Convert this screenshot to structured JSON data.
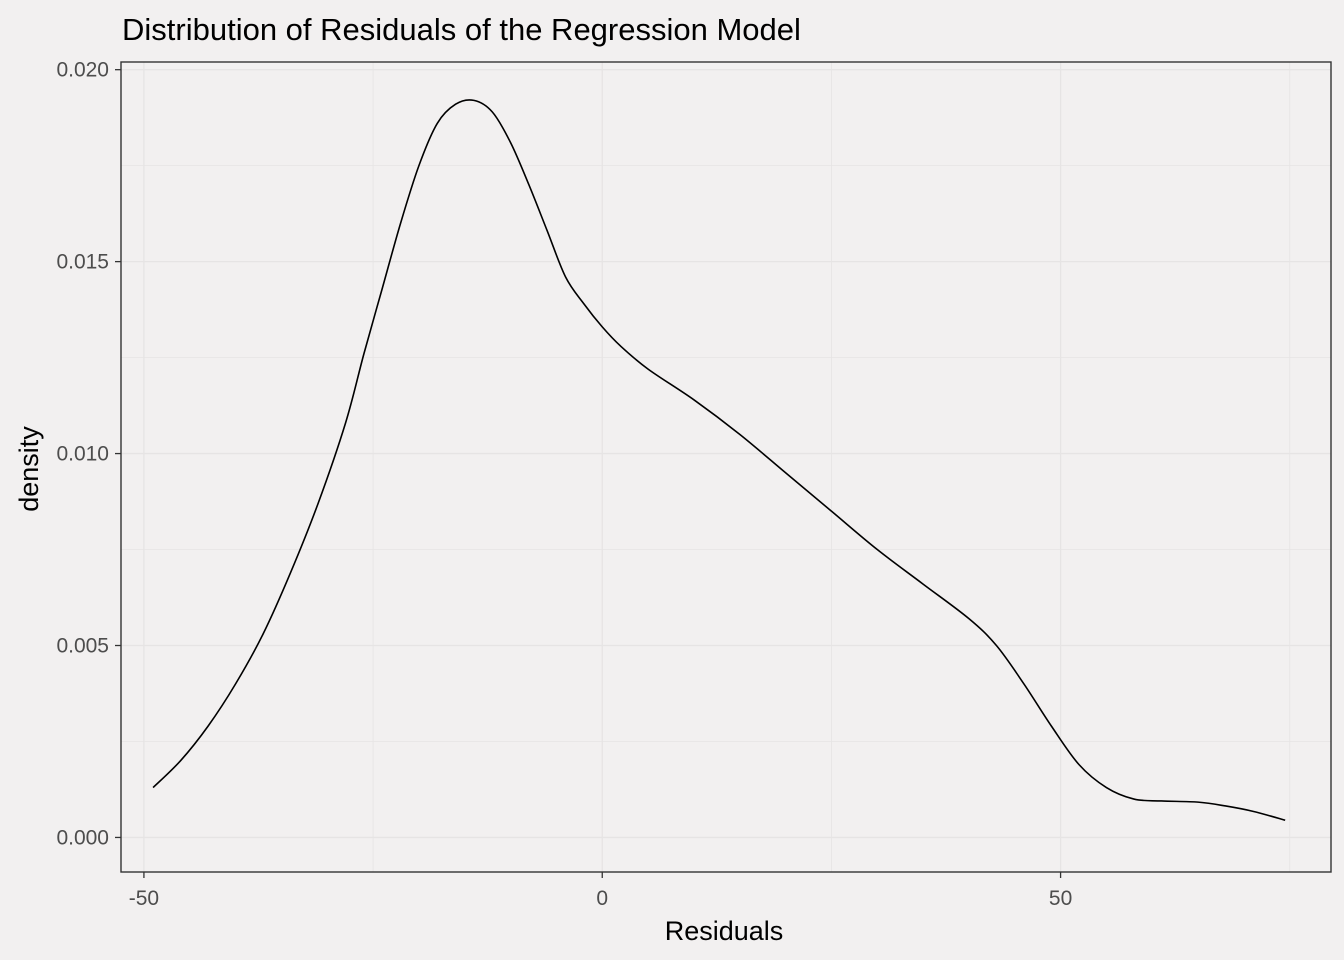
{
  "chart_data": {
    "type": "line",
    "title": "Distribution of Residuals of the Regression Model",
    "xlabel": "Residuals",
    "ylabel": "density",
    "xlim": [
      -52.5,
      79.5
    ],
    "ylim": [
      -0.0009,
      0.0202
    ],
    "x_ticks": [
      {
        "value": -50,
        "label": "-50"
      },
      {
        "value": 0,
        "label": "0"
      },
      {
        "value": 50,
        "label": "50"
      }
    ],
    "y_ticks": [
      {
        "value": 0.0,
        "label": "0.000"
      },
      {
        "value": 0.005,
        "label": "0.005"
      },
      {
        "value": 0.01,
        "label": "0.010"
      },
      {
        "value": 0.015,
        "label": "0.015"
      },
      {
        "value": 0.02,
        "label": "0.020"
      }
    ],
    "grid": true,
    "colors": {
      "background": "#f2f0f0",
      "grid": "#e6e4e4",
      "axis": "#333333",
      "line": "#000000",
      "tick_text": "#4d4d4d",
      "title_text": "#000000"
    },
    "series": [
      {
        "x": [
          -49,
          -46,
          -43,
          -40,
          -37,
          -34,
          -31,
          -28,
          -26,
          -24,
          -22,
          -20,
          -18,
          -16,
          -14,
          -12,
          -10,
          -8,
          -6,
          -4,
          -2,
          0,
          2,
          5,
          10,
          15,
          20,
          25,
          30,
          35,
          40,
          43,
          46,
          49,
          52,
          55,
          58,
          61,
          65,
          68,
          71,
          74.5
        ],
        "y": [
          0.0013,
          0.002,
          0.0029,
          0.004,
          0.0053,
          0.0069,
          0.0087,
          0.0108,
          0.0126,
          0.0143,
          0.016,
          0.0175,
          0.0186,
          0.0191,
          0.0192,
          0.0189,
          0.0181,
          0.017,
          0.0158,
          0.0146,
          0.0139,
          0.0133,
          0.0128,
          0.0122,
          0.0114,
          0.0105,
          0.0095,
          0.0085,
          0.0075,
          0.0066,
          0.0057,
          0.005,
          0.004,
          0.0029,
          0.0019,
          0.0013,
          0.001,
          0.00095,
          0.00092,
          0.00082,
          0.00068,
          0.00045
        ]
      }
    ]
  }
}
